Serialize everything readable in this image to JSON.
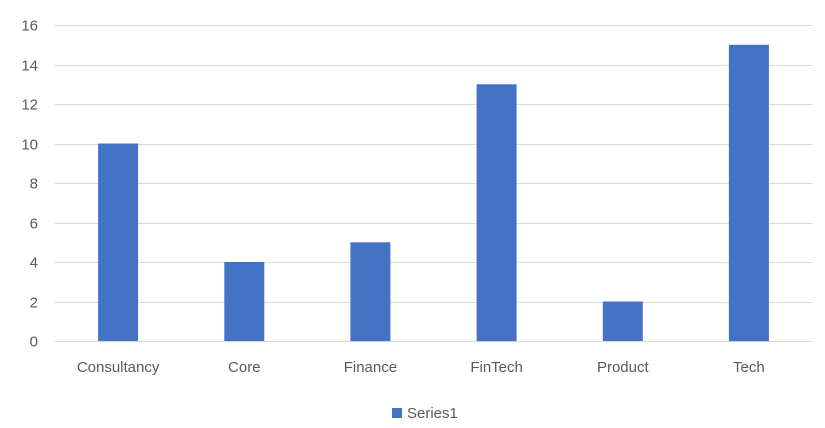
{
  "chart_data": {
    "type": "bar",
    "title": "",
    "xlabel": "",
    "ylabel": "",
    "categories": [
      "Consultancy",
      "Core",
      "Finance",
      "FinTech",
      "Product",
      "Tech"
    ],
    "series": [
      {
        "name": "Series1",
        "values": [
          10,
          4,
          5,
          13,
          2,
          15
        ],
        "color": "#4472c4"
      }
    ],
    "ylim": [
      0,
      16
    ],
    "yticks": [
      0,
      2,
      4,
      6,
      8,
      10,
      12,
      14,
      16
    ],
    "grid": true,
    "legend_position": "bottom"
  }
}
